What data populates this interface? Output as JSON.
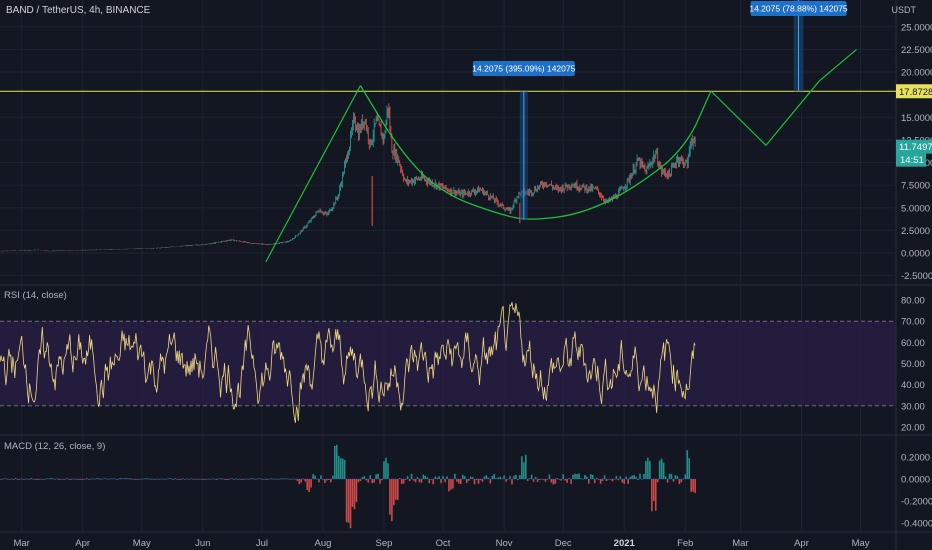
{
  "header": {
    "title": "BAND / TetherUS, 4h, BINANCE",
    "currency": "USDT"
  },
  "colors": {
    "background": "#131722",
    "grid": "#1f2330",
    "up": "#26a69a",
    "down": "#ef5350",
    "pattern": "#1fbf3a",
    "level_line": "#e8e356",
    "rsi_line": "#f0d882",
    "rsi_band": "#2a1f47",
    "measure_fill": "#1a4d80",
    "label_blue": "#1e6fc6",
    "axis_text": "#b2b5be"
  },
  "chart_data": [
    {
      "id": "price",
      "type": "candlestick",
      "x_type": "date",
      "x_range": [
        "2020-02-19",
        "2021-05-19"
      ],
      "y_range": [
        -3.3,
        26.0
      ],
      "y_ticks": [
        "25.0000",
        "22.5000",
        "20.0000",
        "15.0000",
        "12.5000",
        "10.0000",
        "7.5000",
        "5.0000",
        "2.5000",
        "0.0000",
        "-2.5000"
      ],
      "x_ticks": [
        "Mar",
        "Apr",
        "May",
        "Jun",
        "Jul",
        "Aug",
        "Sep",
        "Oct",
        "Nov",
        "Dec",
        "2021",
        "Feb",
        "Mar",
        "Apr",
        "May"
      ],
      "x_tick_dates": [
        "2020-03-01",
        "2020-04-01",
        "2020-05-01",
        "2020-06-01",
        "2020-07-01",
        "2020-08-01",
        "2020-09-01",
        "2020-10-01",
        "2020-11-01",
        "2020-12-01",
        "2021-01-01",
        "2021-02-01",
        "2021-03-01",
        "2021-04-01",
        "2021-05-01"
      ],
      "close_path": [
        [
          "2020-02-19",
          0.22
        ],
        [
          "2020-03-10",
          0.34
        ],
        [
          "2020-03-15",
          0.22
        ],
        [
          "2020-04-01",
          0.31
        ],
        [
          "2020-04-20",
          0.42
        ],
        [
          "2020-05-10",
          0.55
        ],
        [
          "2020-05-25",
          0.82
        ],
        [
          "2020-06-05",
          1.02
        ],
        [
          "2020-06-15",
          1.45
        ],
        [
          "2020-06-25",
          1.1
        ],
        [
          "2020-07-05",
          0.92
        ],
        [
          "2020-07-15",
          1.3
        ],
        [
          "2020-07-20",
          2.2
        ],
        [
          "2020-07-25",
          3.4
        ],
        [
          "2020-07-30",
          4.8
        ],
        [
          "2020-08-03",
          4.2
        ],
        [
          "2020-08-06",
          5.2
        ],
        [
          "2020-08-09",
          6.5
        ],
        [
          "2020-08-12",
          9.5
        ],
        [
          "2020-08-15",
          12.5
        ],
        [
          "2020-08-17",
          15.0
        ],
        [
          "2020-08-19",
          13.2
        ],
        [
          "2020-08-22",
          15.0
        ],
        [
          "2020-08-25",
          12.0
        ],
        [
          "2020-08-28",
          14.5
        ],
        [
          "2020-09-01",
          12.6
        ],
        [
          "2020-09-03",
          16.4
        ],
        [
          "2020-09-05",
          11.5
        ],
        [
          "2020-09-08",
          10.5
        ],
        [
          "2020-09-12",
          7.8
        ],
        [
          "2020-09-20",
          8.3
        ],
        [
          "2020-10-01",
          7.2
        ],
        [
          "2020-10-10",
          6.5
        ],
        [
          "2020-10-20",
          7.0
        ],
        [
          "2020-10-25",
          6.2
        ],
        [
          "2020-11-01",
          5.0
        ],
        [
          "2020-11-04",
          4.6
        ],
        [
          "2020-11-08",
          6.5
        ],
        [
          "2020-11-15",
          6.8
        ],
        [
          "2020-11-22",
          7.8
        ],
        [
          "2020-11-28",
          7.0
        ],
        [
          "2020-12-05",
          7.6
        ],
        [
          "2020-12-12",
          7.2
        ],
        [
          "2020-12-18",
          7.0
        ],
        [
          "2020-12-23",
          5.6
        ],
        [
          "2020-12-28",
          6.3
        ],
        [
          "2021-01-03",
          8.0
        ],
        [
          "2021-01-08",
          10.2
        ],
        [
          "2021-01-12",
          9.0
        ],
        [
          "2021-01-17",
          11.0
        ],
        [
          "2021-01-20",
          9.0
        ],
        [
          "2021-01-24",
          8.7
        ],
        [
          "2021-01-28",
          10.5
        ],
        [
          "2021-02-02",
          9.8
        ],
        [
          "2021-02-04",
          12.8
        ],
        [
          "2021-02-06",
          11.7497
        ]
      ],
      "wicks": [
        [
          "2020-08-26",
          3.0,
          8.5
        ],
        [
          "2020-11-09",
          3.3,
          5.5
        ]
      ],
      "lines": {
        "horizontal_level": 17.8728,
        "left_leg": [
          [
            "2020-07-03",
            -1.0
          ],
          [
            "2020-08-20",
            18.5
          ]
        ],
        "cup": [
          [
            "2020-08-20",
            18.5
          ],
          [
            "2020-09-10",
            11.0
          ],
          [
            "2020-10-01",
            6.5
          ],
          [
            "2020-11-01",
            4.1
          ],
          [
            "2020-11-15",
            3.6
          ],
          [
            "2020-12-10",
            4.3
          ],
          [
            "2021-01-05",
            7.0
          ],
          [
            "2021-02-01",
            11.5
          ],
          [
            "2021-02-14",
            17.9
          ]
        ],
        "projection": [
          [
            "2021-02-14",
            17.9
          ],
          [
            "2021-03-14",
            11.9
          ],
          [
            "2021-04-10",
            19.0
          ],
          [
            "2021-04-29",
            22.5
          ]
        ]
      },
      "measures": [
        {
          "x0": "2020-11-09",
          "x1": "2020-11-13",
          "y0": 3.66,
          "y1": 17.87,
          "label": "14.2075 (395.09%) 142075"
        },
        {
          "x0": "2021-03-28",
          "x1": "2021-04-02",
          "y0": 17.87,
          "y1": 32.08,
          "label": "14.2075 (78.88%) 142075"
        }
      ],
      "price_labels": [
        {
          "value": 17.8728,
          "text": "17.8728"
        },
        {
          "value": 11.7497,
          "text": "11.7497"
        }
      ],
      "countdown": "14:51"
    },
    {
      "id": "rsi",
      "type": "line",
      "title": "RSI (14, close)",
      "y_range": [
        15,
        86
      ],
      "y_ticks": [
        "80.00",
        "70.00",
        "60.00",
        "50.00",
        "40.00",
        "30.00",
        "20.00"
      ],
      "band": [
        30,
        70
      ],
      "y_range_values": [
        22,
        86
      ],
      "last": 48
    },
    {
      "id": "macd",
      "type": "bar",
      "title": "MACD (12, 26, close, 9)",
      "y_range": [
        -0.48,
        0.33
      ],
      "y_ticks": [
        "0.2000",
        "0.0000",
        "-0.2000",
        "-0.4000"
      ],
      "spikes": [
        [
          "2020-08-08",
          0.33
        ],
        [
          "2020-08-11",
          0.28
        ],
        [
          "2020-08-14",
          -0.45
        ],
        [
          "2020-08-17",
          -0.3
        ],
        [
          "2020-09-02",
          0.22
        ],
        [
          "2020-09-05",
          -0.41
        ],
        [
          "2020-09-07",
          -0.3
        ],
        [
          "2020-07-25",
          -0.12
        ],
        [
          "2020-10-05",
          -0.12
        ],
        [
          "2020-11-11",
          0.22
        ],
        [
          "2021-01-13",
          0.2
        ],
        [
          "2021-01-16",
          -0.3
        ],
        [
          "2021-01-20",
          0.22
        ],
        [
          "2021-02-03",
          0.3
        ],
        [
          "2021-02-05",
          -0.15
        ]
      ]
    }
  ]
}
